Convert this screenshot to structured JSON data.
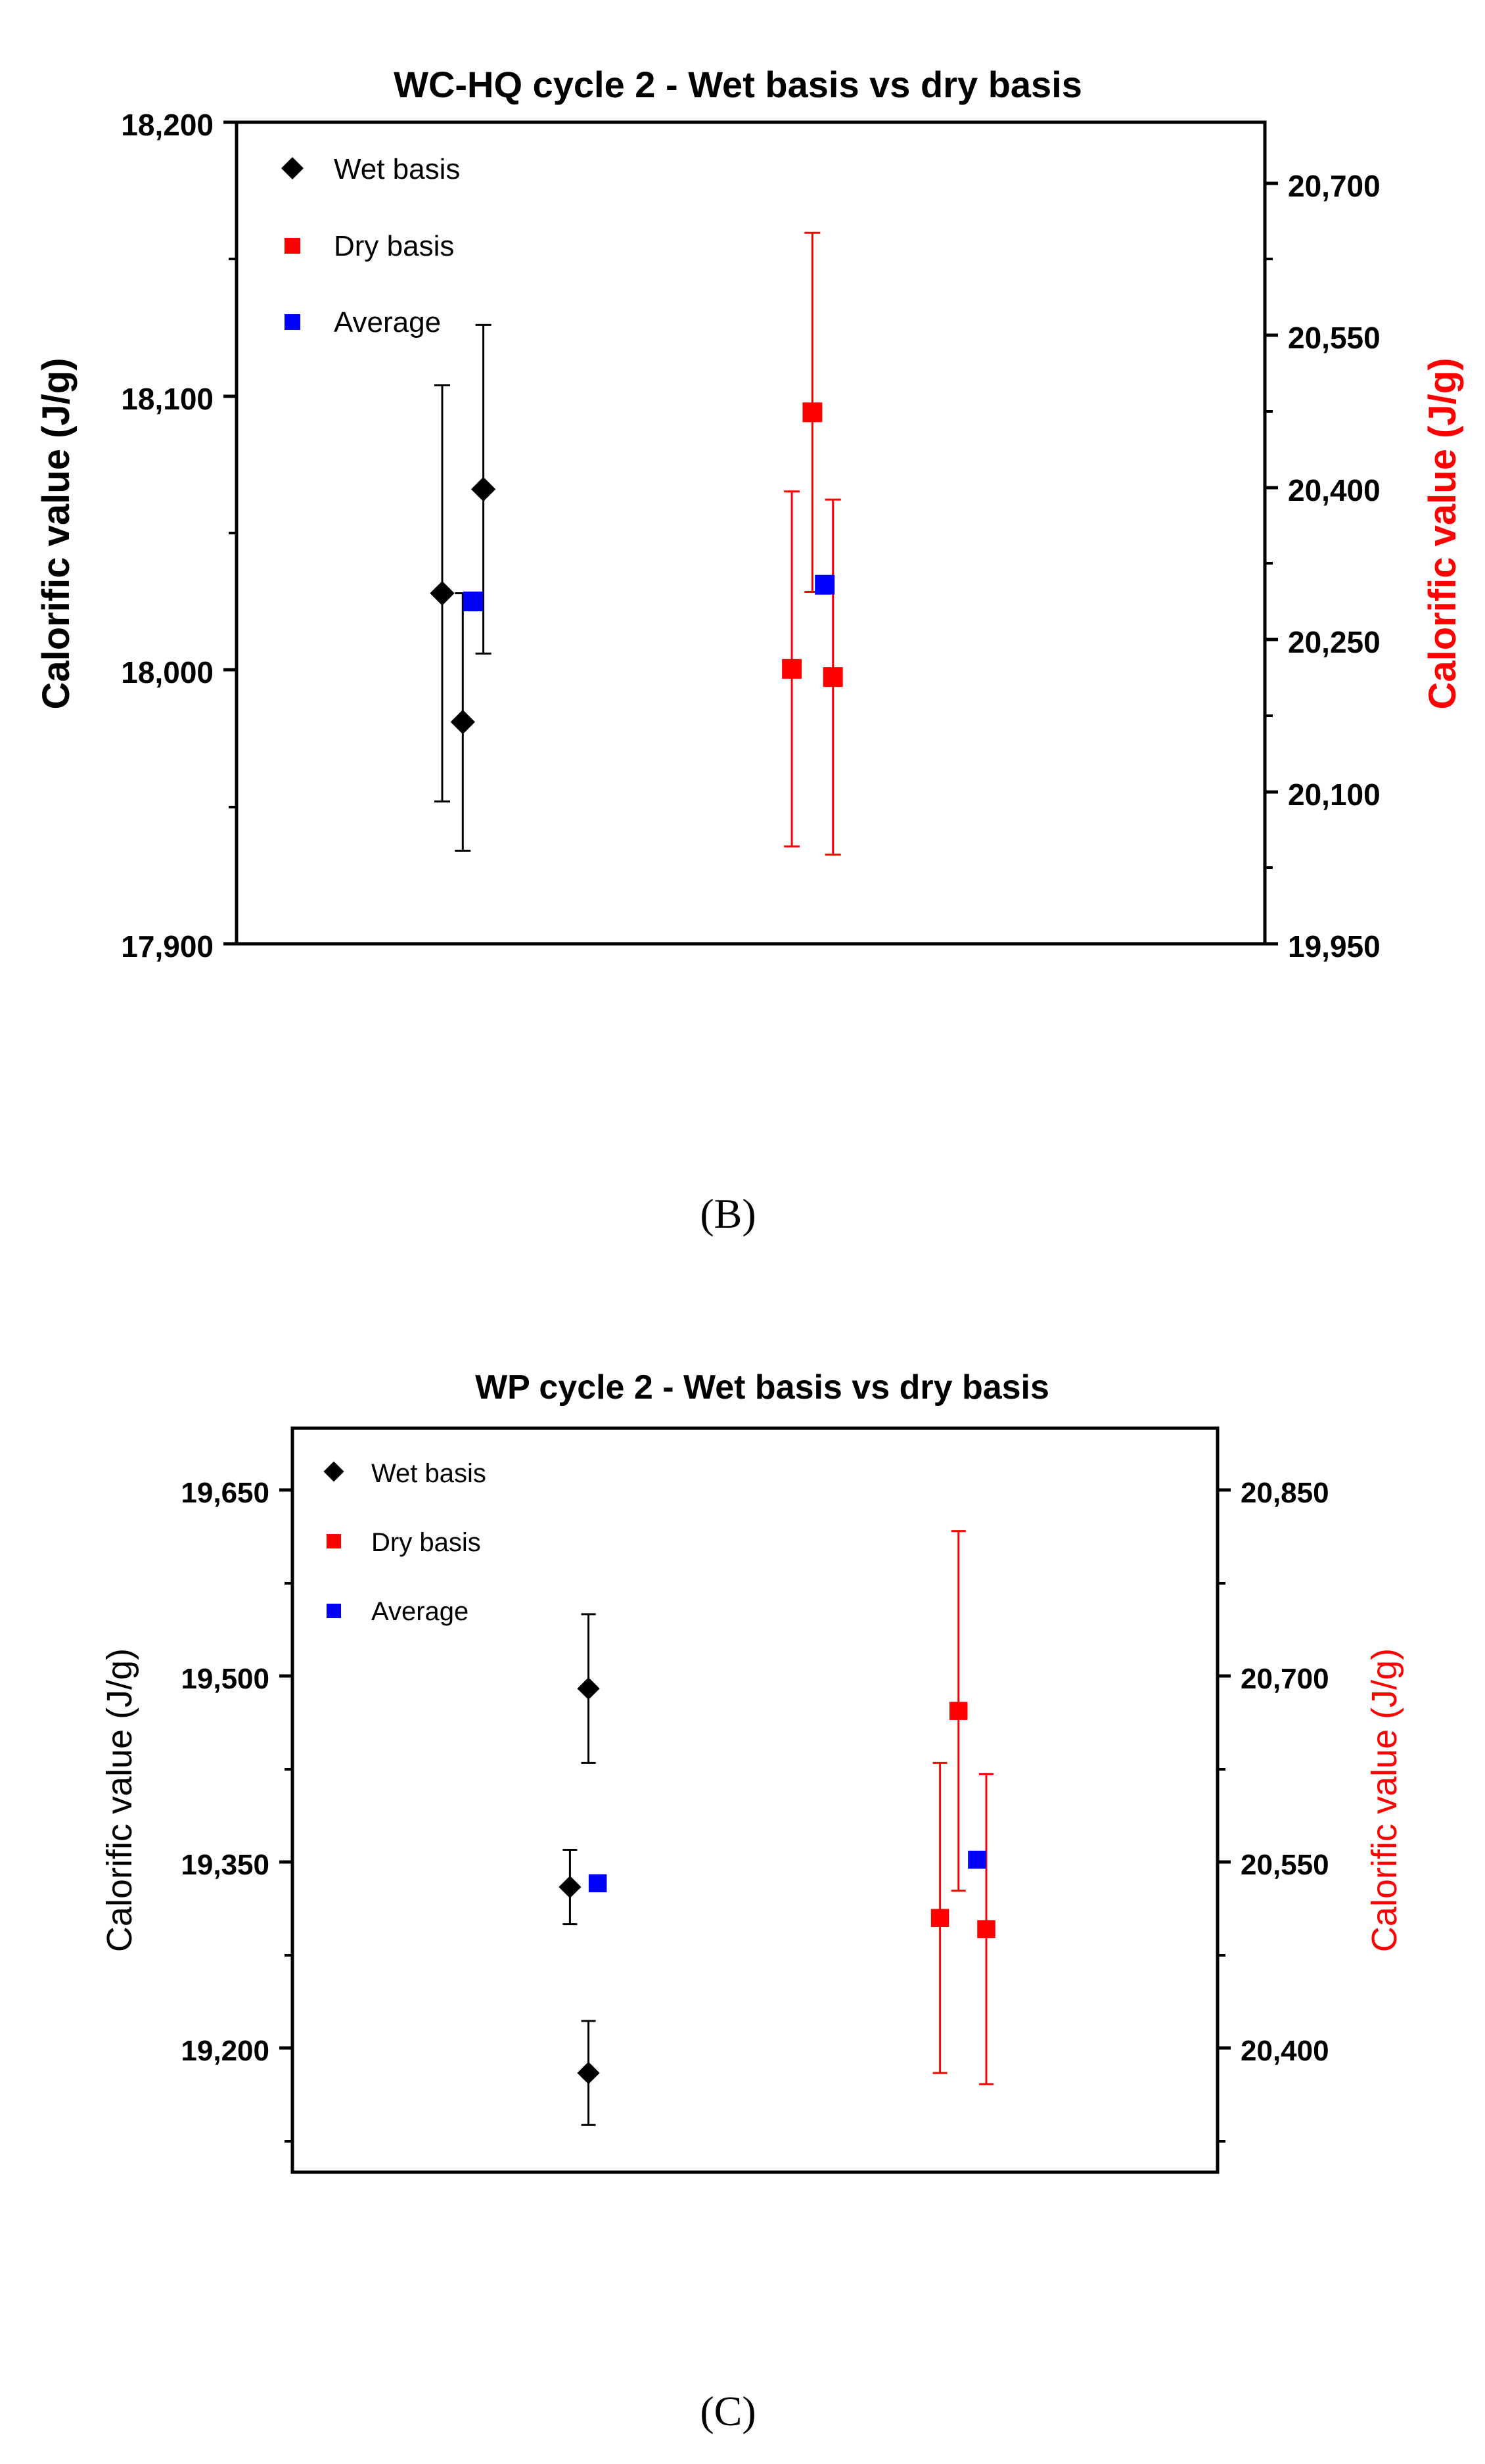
{
  "panels": [
    {
      "panel_label": "(B)",
      "chart_data": {
        "type": "scatter",
        "title": "WC-HQ cycle 2 - Wet basis vs dry basis",
        "ylabel": "Calorific value (J/g)",
        "y2label": "Calorific value (J/g)",
        "xlabel": "",
        "ylim": [
          17900,
          18200
        ],
        "y2lim": [
          19950,
          20760
        ],
        "yticks": [
          "17,900",
          "18,000",
          "18,100",
          "18,200"
        ],
        "y2ticks": [
          "19,950",
          "20,100",
          "20,250",
          "20,400",
          "20,550",
          "20,700"
        ],
        "legend_position": "top-left",
        "legend": [
          "Wet basis",
          "Dry basis",
          "Average"
        ],
        "series": [
          {
            "name": "Wet basis",
            "axis": "left",
            "marker": "diamond",
            "color": "#000000",
            "points": [
              {
                "x": 0.2,
                "y": 18028,
                "err": 76
              },
              {
                "x": 0.22,
                "y": 17981,
                "err": 47
              },
              {
                "x": 0.24,
                "y": 18066,
                "err": 60
              }
            ]
          },
          {
            "name": "Wet basis average",
            "axis": "left",
            "marker": "square",
            "color": "#0000ff",
            "points": [
              {
                "x": 0.23,
                "y": 18025,
                "err": 0
              }
            ]
          },
          {
            "name": "Dry basis",
            "axis": "right",
            "marker": "square",
            "color": "#ff0000",
            "points": [
              {
                "x": 0.54,
                "y": 20221,
                "err": 175
              },
              {
                "x": 0.56,
                "y": 20474,
                "err": 177
              },
              {
                "x": 0.58,
                "y": 20213,
                "err": 175
              }
            ]
          },
          {
            "name": "Dry basis average",
            "axis": "right",
            "marker": "square",
            "color": "#0000ff",
            "points": [
              {
                "x": 0.572,
                "y": 20304,
                "err": 0
              }
            ]
          }
        ]
      }
    },
    {
      "panel_label": "(C)",
      "chart_data": {
        "type": "scatter",
        "title": "WP cycle 2 - Wet basis vs dry basis",
        "ylabel": "Calorific value (J/g)",
        "y2label": "Calorific value (J/g)",
        "xlabel": "",
        "ylim": [
          19100,
          19700
        ],
        "y2lim": [
          20300,
          20900
        ],
        "yticks": [
          "19,200",
          "19,350",
          "19,500",
          "19,650"
        ],
        "y2ticks": [
          "20,400",
          "20,550",
          "20,700",
          "20,850"
        ],
        "legend_position": "top-left",
        "legend": [
          "Wet basis",
          "Dry basis",
          "Average"
        ],
        "series": [
          {
            "name": "Wet basis",
            "axis": "left",
            "marker": "diamond",
            "color": "#000000",
            "points": [
              {
                "x": 0.3,
                "y": 19330,
                "err": 30
              },
              {
                "x": 0.32,
                "y": 19490,
                "err": 60
              },
              {
                "x": 0.32,
                "y": 19180,
                "err": 42
              }
            ]
          },
          {
            "name": "Wet basis average",
            "axis": "left",
            "marker": "square",
            "color": "#0000ff",
            "points": [
              {
                "x": 0.33,
                "y": 19333,
                "err": 0
              }
            ]
          },
          {
            "name": "Dry basis",
            "axis": "right",
            "marker": "square",
            "color": "#ff0000",
            "points": [
              {
                "x": 0.7,
                "y": 20505,
                "err": 125
              },
              {
                "x": 0.72,
                "y": 20672,
                "err": 145
              },
              {
                "x": 0.75,
                "y": 20496,
                "err": 125
              }
            ]
          },
          {
            "name": "Dry basis average",
            "axis": "right",
            "marker": "square",
            "color": "#0000ff",
            "points": [
              {
                "x": 0.74,
                "y": 20552,
                "err": 0
              }
            ]
          }
        ]
      }
    }
  ]
}
